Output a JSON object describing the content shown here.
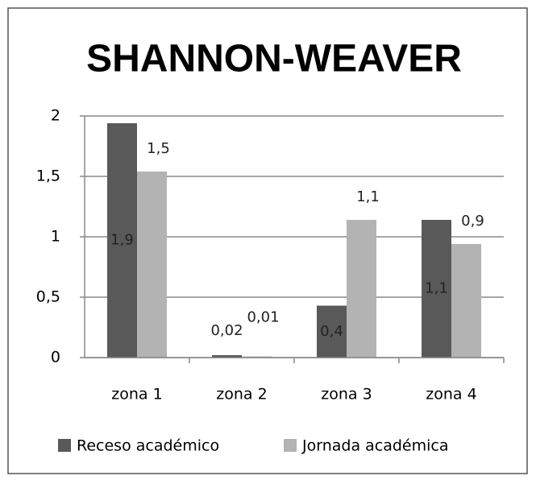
{
  "chart_data": {
    "type": "bar",
    "title": "SHANNON-WEAVER",
    "categories": [
      "zona 1",
      "zona 2",
      "zona 3",
      "zona 4"
    ],
    "series": [
      {
        "name": "Receso académico",
        "color": "#595959",
        "values": [
          1.94,
          0.02,
          0.43,
          1.14
        ],
        "value_labels": [
          "1,9",
          "0,02",
          "0,4",
          "1,1"
        ]
      },
      {
        "name": "Jornada académica",
        "color": "#b3b3b3",
        "values": [
          1.54,
          0.01,
          1.14,
          0.94
        ],
        "value_labels": [
          "1,5",
          "0,01",
          "1,1",
          "0,9"
        ]
      }
    ],
    "ylim": [
      0,
      2
    ],
    "yticks": [
      0,
      {
        "value": 0.5,
        "label": "0,5"
      },
      1,
      {
        "value": 1.5,
        "label": "1,5"
      },
      2
    ],
    "grid": true,
    "legend": "bottom"
  }
}
